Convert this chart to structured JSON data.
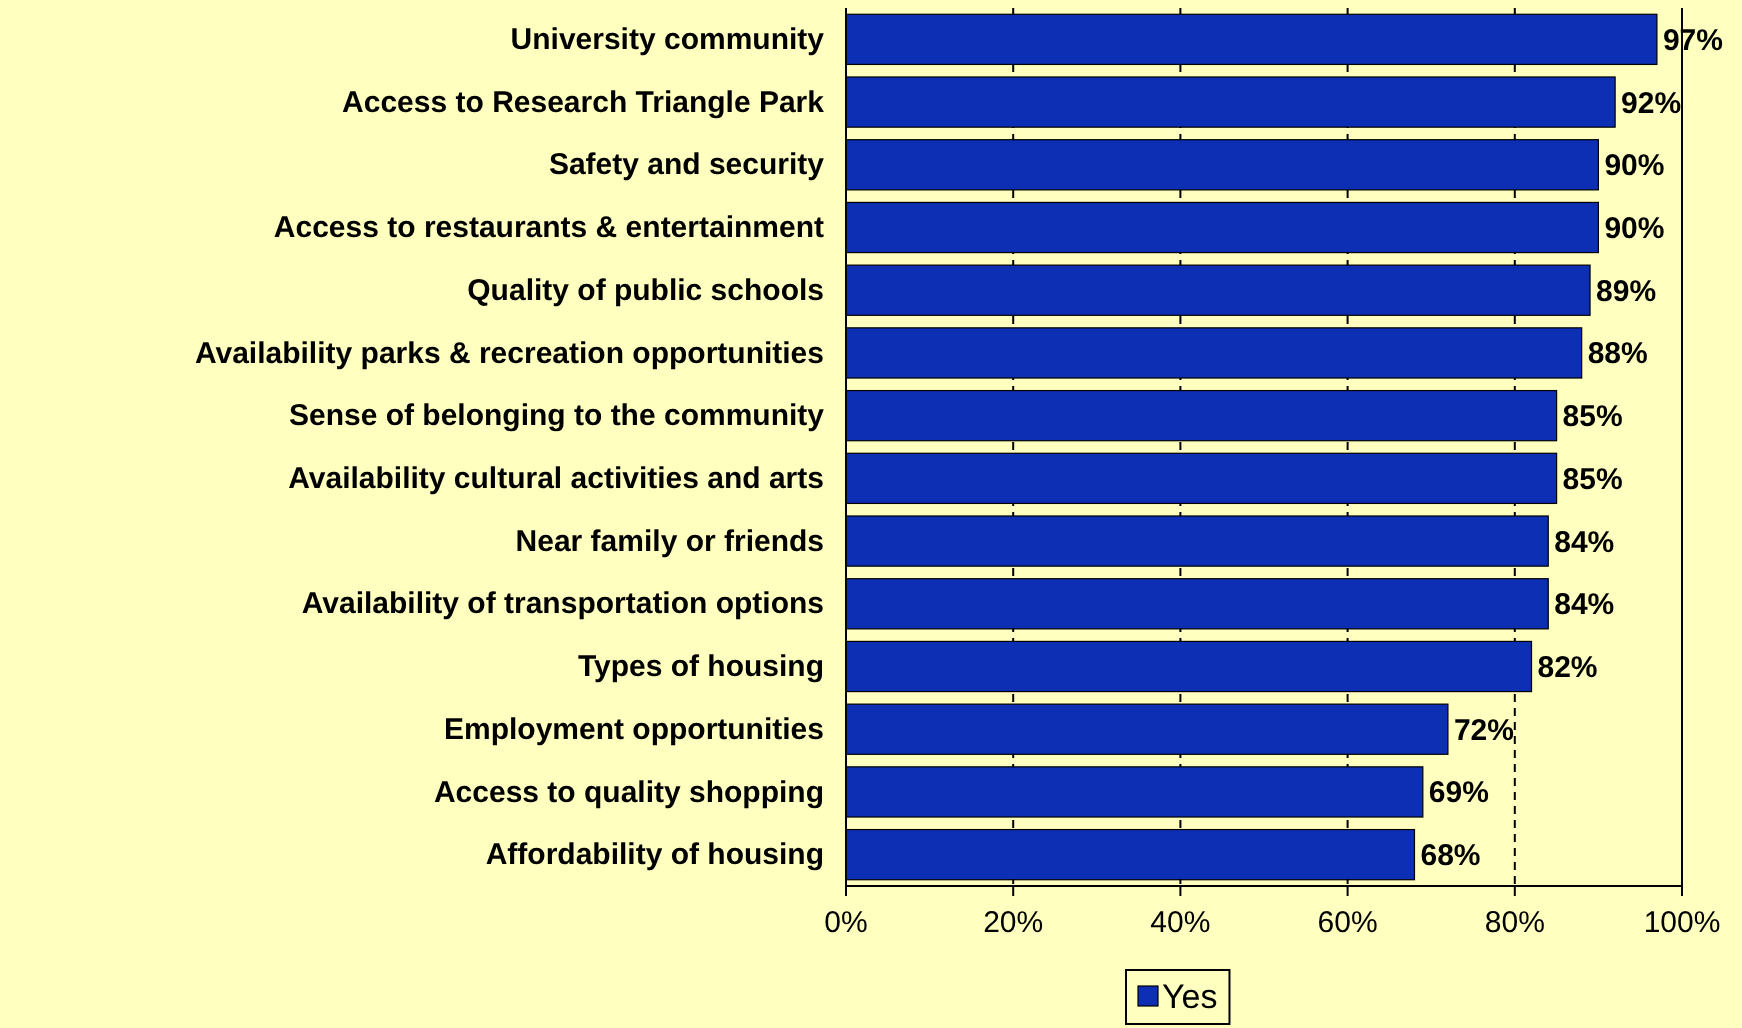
{
  "chart_data": {
    "type": "bar",
    "orientation": "horizontal",
    "categories": [
      "University community",
      "Access to Research Triangle Park",
      "Safety and security",
      "Access to restaurants & entertainment",
      "Quality of public schools",
      "Availability parks & recreation opportunities",
      "Sense of belonging to the community",
      "Availability cultural activities and arts",
      "Near family or friends",
      "Availability of transportation options",
      "Types of housing",
      "Employment opportunities",
      "Access to quality shopping",
      "Affordability of housing"
    ],
    "series": [
      {
        "name": "Yes",
        "color": "#0c2fb4",
        "values": [
          97,
          92,
          90,
          90,
          89,
          88,
          85,
          85,
          84,
          84,
          82,
          72,
          69,
          68
        ],
        "value_labels": [
          "97%",
          "92%",
          "90%",
          "90%",
          "89%",
          "88%",
          "85%",
          "85%",
          "84%",
          "84%",
          "82%",
          "72%",
          "69%",
          "68%"
        ]
      }
    ],
    "xlim": [
      0,
      100
    ],
    "xticks": [
      {
        "value": 0,
        "label": "0%"
      },
      {
        "value": 20,
        "label": "20%"
      },
      {
        "value": 40,
        "label": "40%"
      },
      {
        "value": 60,
        "label": "60%"
      },
      {
        "value": 80,
        "label": "80%"
      },
      {
        "value": 100,
        "label": "100%"
      }
    ],
    "grid": "x",
    "line_style": "dashed",
    "legend": "bottom"
  }
}
